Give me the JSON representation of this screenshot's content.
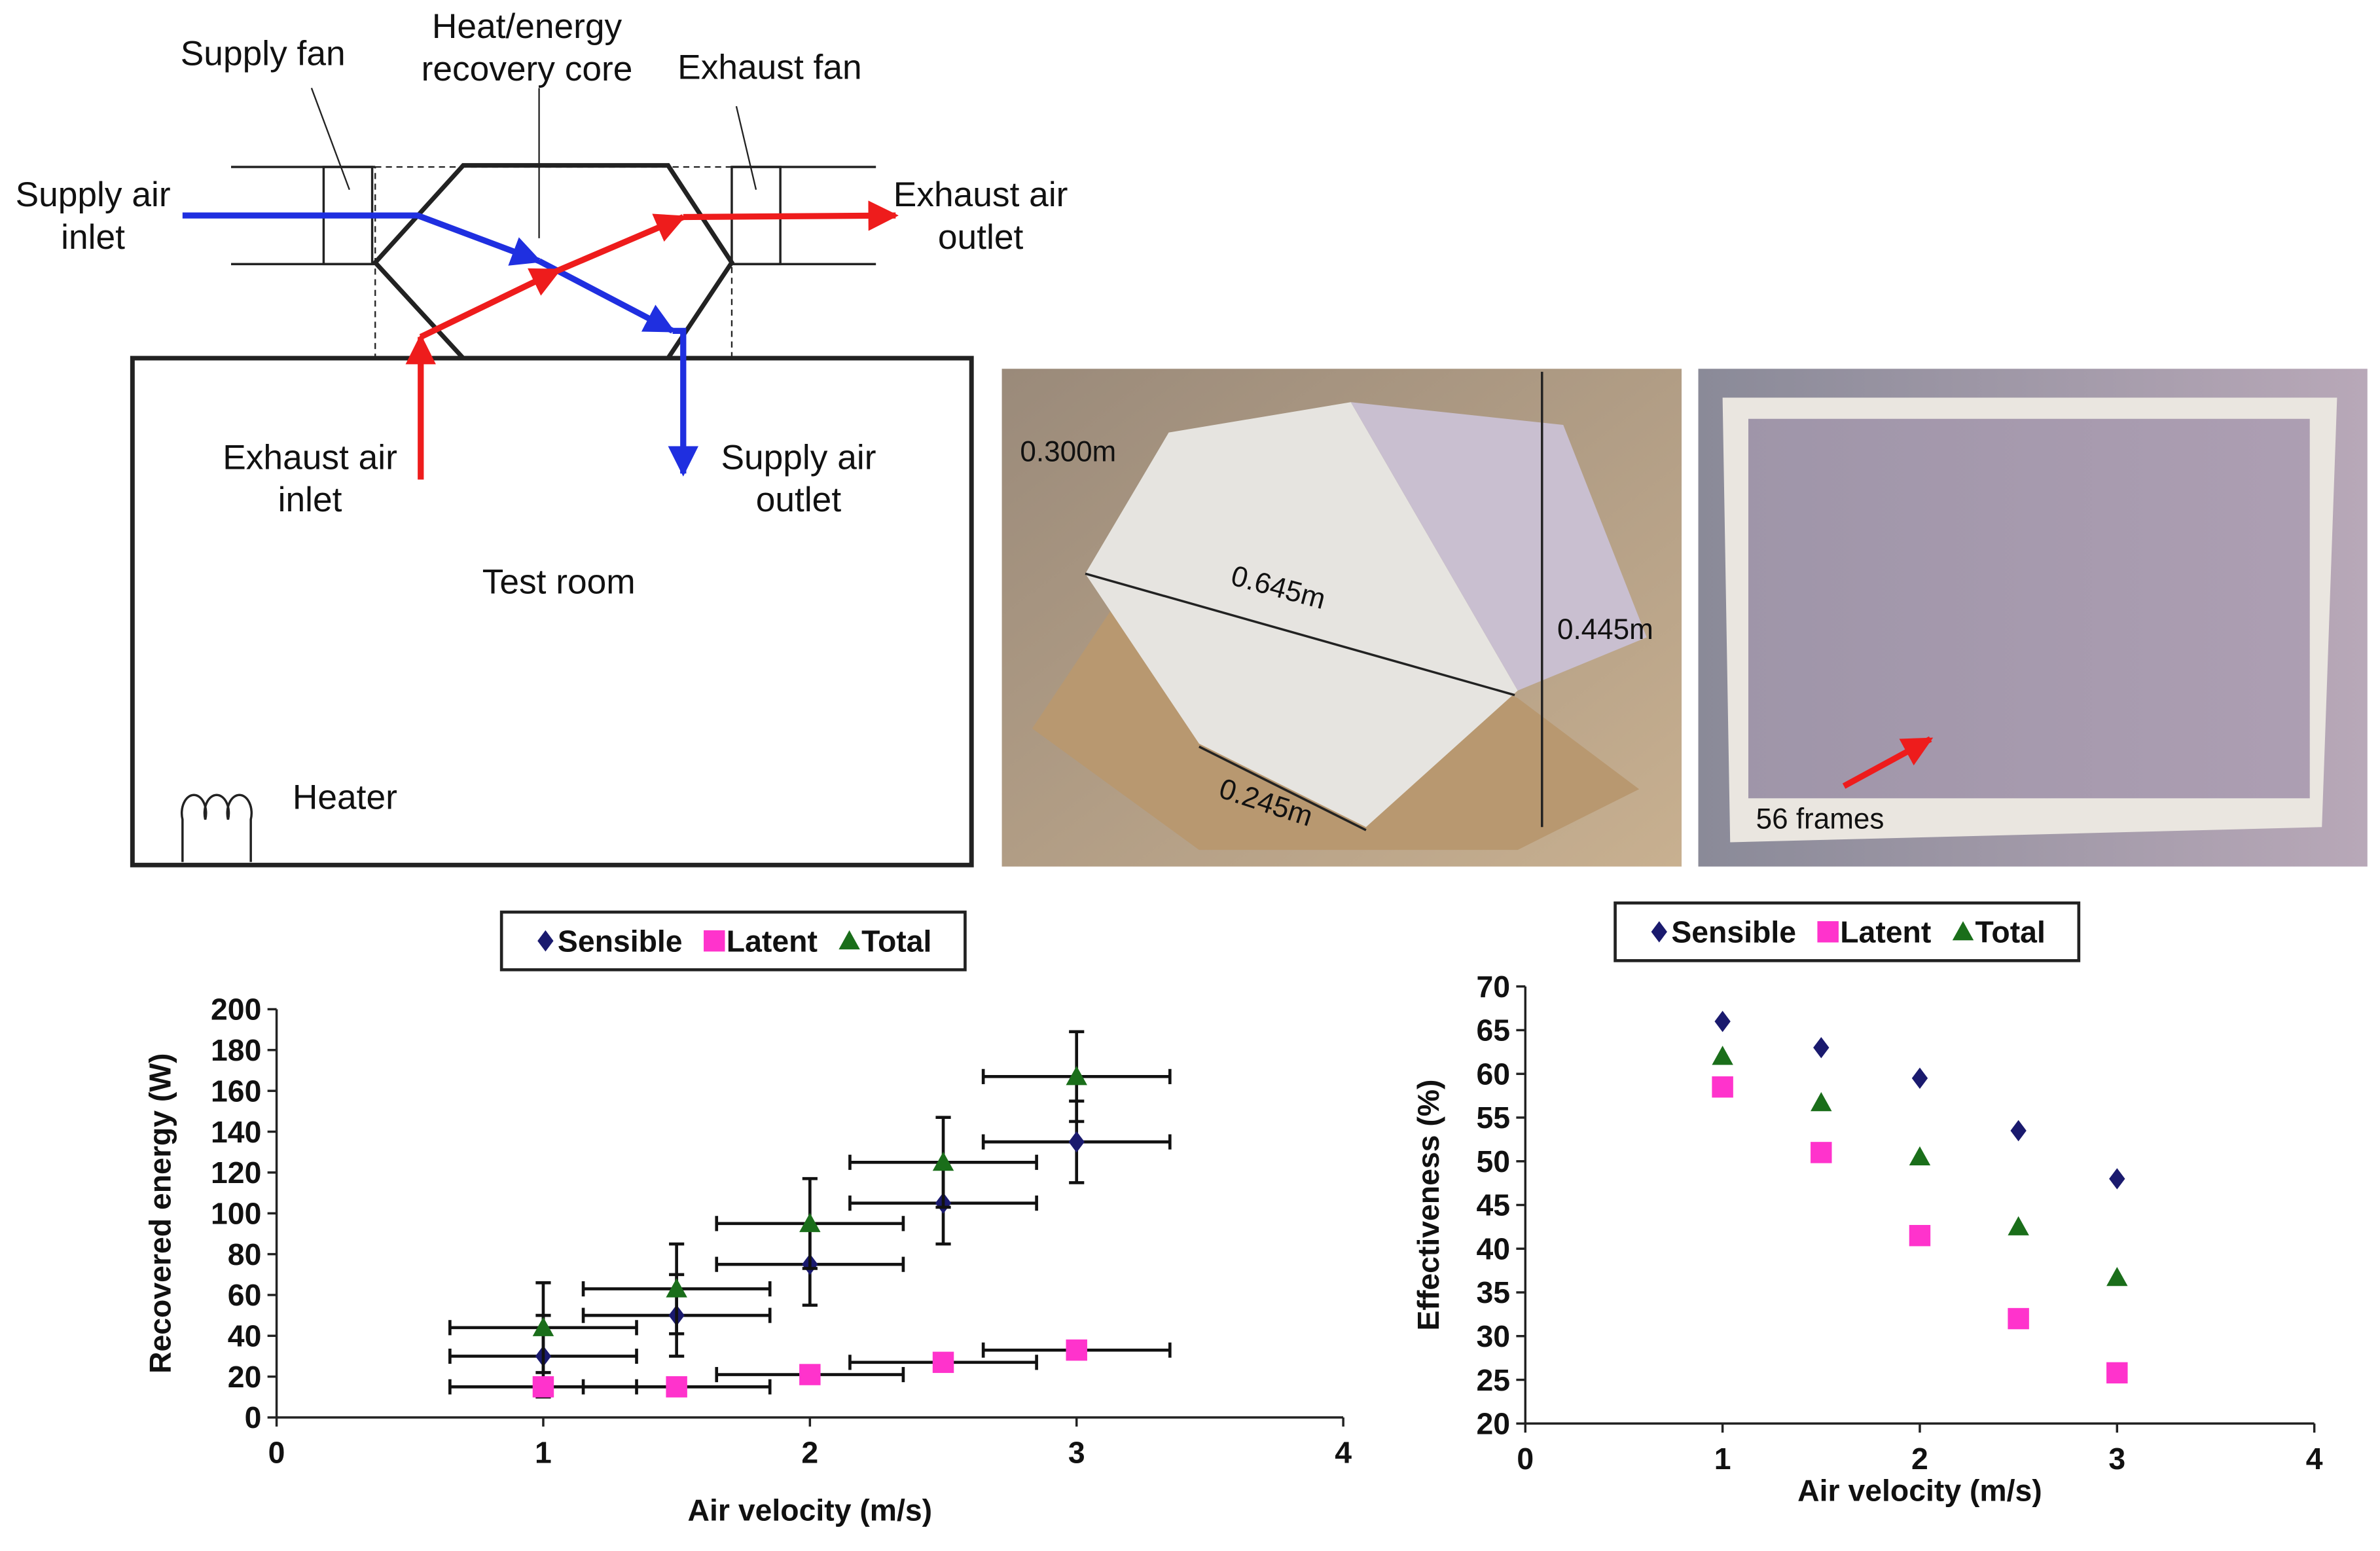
{
  "diagram": {
    "supply_fan": "Supply fan",
    "core": [
      "Heat/energy",
      "recovery core"
    ],
    "exhaust_fan": "Exhaust fan",
    "supply_air_inlet": [
      "Supply air",
      "inlet"
    ],
    "exhaust_air_outlet": [
      "Exhaust air",
      "outlet"
    ],
    "exhaust_air_inlet": [
      "Exhaust air",
      "inlet"
    ],
    "supply_air_outlet": [
      "Supply air",
      "outlet"
    ],
    "test_room": "Test room",
    "heater": "Heater"
  },
  "photos": {
    "depth": "0.300m",
    "diagonal": "0.645m",
    "height": "0.445m",
    "side": "0.245m",
    "frames": "56 frames"
  },
  "chart_data": [
    {
      "type": "scatter",
      "xlabel": "Air velocity (m/s)",
      "ylabel": "Recovered energy (W)",
      "xlim": [
        0,
        4
      ],
      "xticks": [
        0,
        1,
        2,
        3,
        4
      ],
      "ylim": [
        0,
        200
      ],
      "yticks": [
        0,
        20,
        40,
        60,
        80,
        100,
        120,
        140,
        160,
        180,
        200
      ],
      "legend": "top",
      "series": [
        {
          "name": "Sensible",
          "color": "#1a1a6e",
          "marker": "diamond",
          "x": [
            1,
            1.5,
            2,
            2.5,
            3
          ],
          "values": [
            30,
            50,
            75,
            105,
            135
          ],
          "xerr": [
            0.35,
            0.35,
            0.35,
            0.35,
            0.35
          ],
          "yerr": [
            20,
            20,
            20,
            20,
            20
          ]
        },
        {
          "name": "Latent",
          "color": "#ff33cc",
          "marker": "square",
          "x": [
            1,
            1.5,
            2,
            2.5,
            3
          ],
          "values": [
            15,
            15,
            21,
            27,
            33
          ],
          "xerr": [
            0.35,
            0.35,
            0.35,
            0.35,
            0.35
          ]
        },
        {
          "name": "Total",
          "color": "#1a6e1a",
          "marker": "triangle",
          "x": [
            1,
            1.5,
            2,
            2.5,
            3
          ],
          "values": [
            44,
            63,
            95,
            125,
            167
          ],
          "xerr": [
            0.35,
            0.35,
            0.35,
            0.35,
            0.35
          ],
          "yerr": [
            22,
            22,
            22,
            22,
            22
          ]
        }
      ]
    },
    {
      "type": "scatter",
      "xlabel": "Air velocity (m/s)",
      "ylabel": "Effectiveness (%)",
      "xlim": [
        0,
        4
      ],
      "xticks": [
        0,
        1,
        2,
        3,
        4
      ],
      "ylim": [
        20,
        70
      ],
      "yticks": [
        20,
        25,
        30,
        35,
        40,
        45,
        50,
        55,
        60,
        65,
        70
      ],
      "legend": "top",
      "series": [
        {
          "name": "Sensible",
          "color": "#1a1a6e",
          "marker": "diamond",
          "x": [
            1,
            1.5,
            2,
            2.5,
            3
          ],
          "values": [
            66,
            63,
            59.5,
            53.5,
            48
          ]
        },
        {
          "name": "Latent",
          "color": "#ff33cc",
          "marker": "square",
          "x": [
            1,
            1.5,
            2,
            2.5,
            3
          ],
          "values": [
            58.5,
            51,
            41.5,
            32,
            25.8
          ]
        },
        {
          "name": "Total",
          "color": "#1a6e1a",
          "marker": "triangle",
          "x": [
            1,
            1.5,
            2,
            2.5,
            3
          ],
          "values": [
            62,
            56.7,
            50.5,
            42.5,
            36.7
          ]
        }
      ]
    }
  ]
}
